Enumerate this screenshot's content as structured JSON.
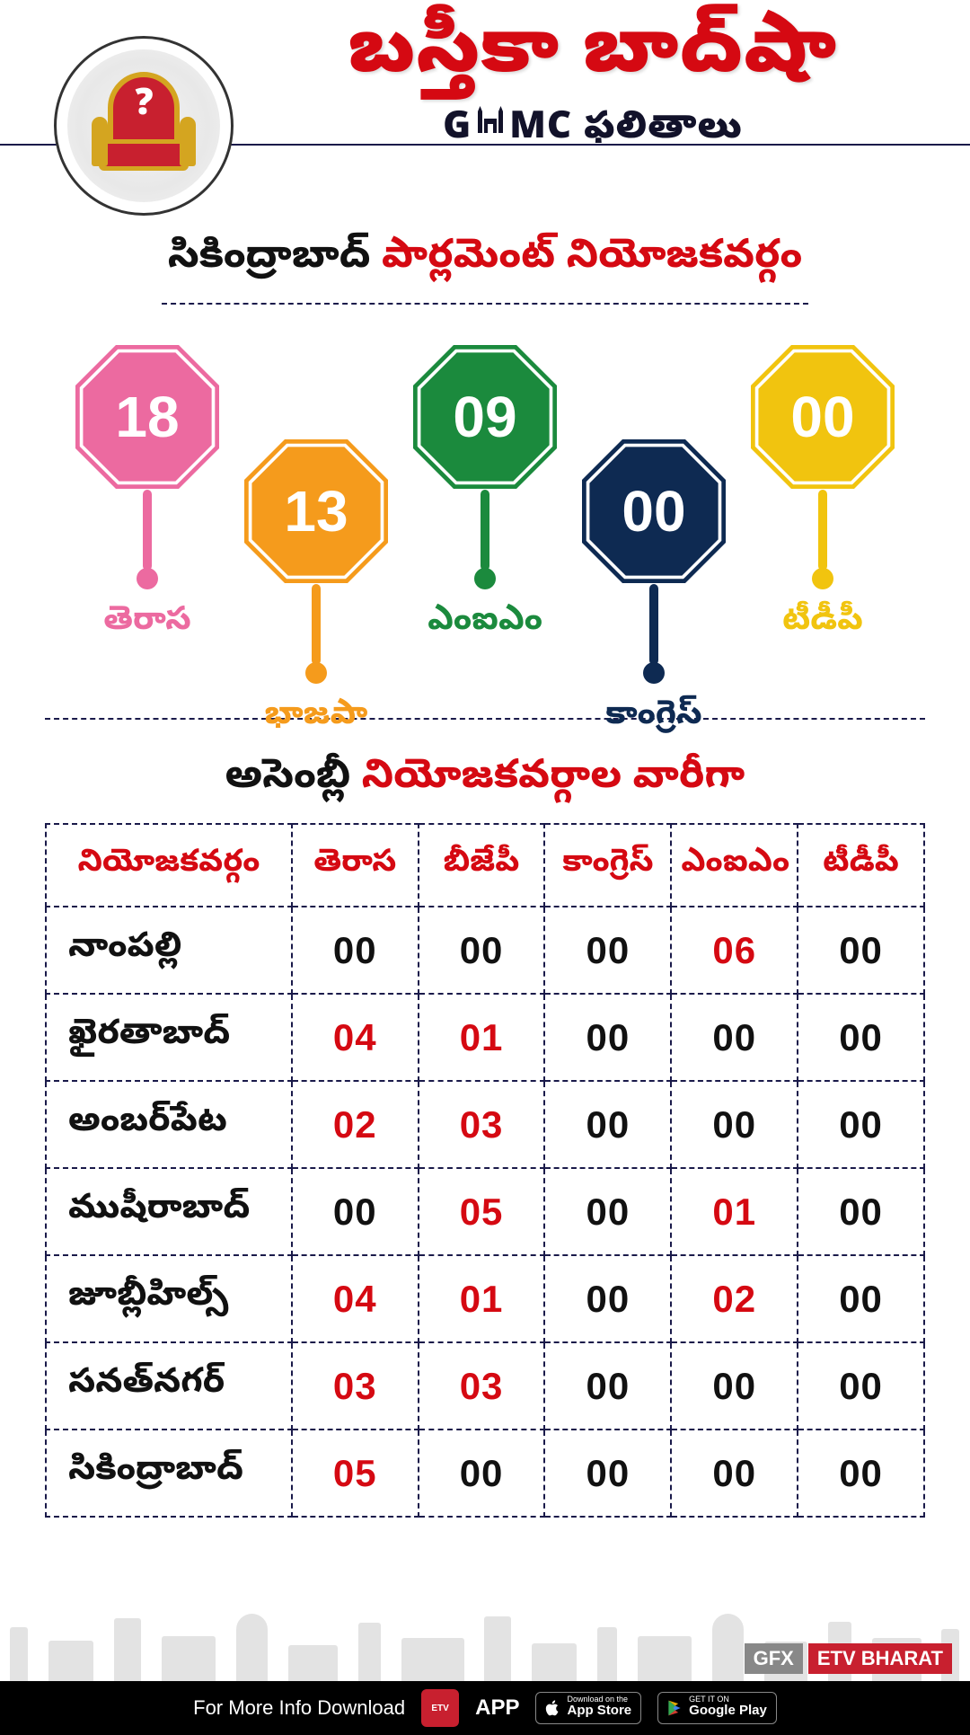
{
  "header": {
    "main_title": "బస్తీకా బాద్‌షా",
    "sub_prefix": "G",
    "sub_suffix": "MC",
    "sub_title_rest": "ఫలితాలు",
    "throne_mark": "?"
  },
  "section1": {
    "heading_black": "సికింద్రాబాద్",
    "heading_red": "పార్లమెంట్ నియోజకవర్గం"
  },
  "parties": [
    {
      "value": "18",
      "label": "తెరాస",
      "color": "#ec6aa0",
      "down": false,
      "stem": 90
    },
    {
      "value": "13",
      "label": "భాజపా",
      "color": "#f59b1c",
      "down": true,
      "stem": 90
    },
    {
      "value": "09",
      "label": "ఎంఐఎం",
      "color": "#1b8a3d",
      "down": false,
      "stem": 90
    },
    {
      "value": "00",
      "label": "కాంగ్రెస్",
      "color": "#0e2a52",
      "down": true,
      "stem": 90
    },
    {
      "value": "00",
      "label": "టీడీపీ",
      "color": "#f1c40f",
      "down": false,
      "stem": 90
    }
  ],
  "section2": {
    "heading_black": "అసెంబ్లీ",
    "heading_red": "నియోజకవర్గాల వారీగా"
  },
  "table": {
    "columns": [
      "నియోజకవర్గం",
      "తెరాస",
      "బీజేపీ",
      "కాంగ్రెస్",
      "ఎంఐఎం",
      "టీడీపీ"
    ],
    "col_widths": [
      "28%",
      "14.4%",
      "14.4%",
      "14.4%",
      "14.4%",
      "14.4%"
    ],
    "nonzero_color": "#d50912",
    "zero_color": "#111111",
    "rows": [
      {
        "name": "నాంపల్లి",
        "cells": [
          "00",
          "00",
          "00",
          "06",
          "00"
        ]
      },
      {
        "name": "ఖైరతాబాద్",
        "cells": [
          "04",
          "01",
          "00",
          "00",
          "00"
        ]
      },
      {
        "name": "అంబర్‌పేట",
        "cells": [
          "02",
          "03",
          "00",
          "00",
          "00"
        ]
      },
      {
        "name": "ముషీరాబాద్",
        "cells": [
          "00",
          "05",
          "00",
          "01",
          "00"
        ]
      },
      {
        "name": "జూబ్లీహిల్స్",
        "cells": [
          "04",
          "01",
          "00",
          "02",
          "00"
        ]
      },
      {
        "name": "సనత్‌నగర్",
        "cells": [
          "03",
          "03",
          "00",
          "00",
          "00"
        ]
      },
      {
        "name": "సికింద్రాబాద్",
        "cells": [
          "05",
          "00",
          "00",
          "00",
          "00"
        ]
      }
    ]
  },
  "footer": {
    "info_text": "For More Info Download",
    "app_word": "APP",
    "appstore_small": "Download on the",
    "appstore_big": "App Store",
    "play_small": "GET IT ON",
    "play_big": "Google Play",
    "gfx": "GFX",
    "etv": "ETV BHARAT"
  }
}
